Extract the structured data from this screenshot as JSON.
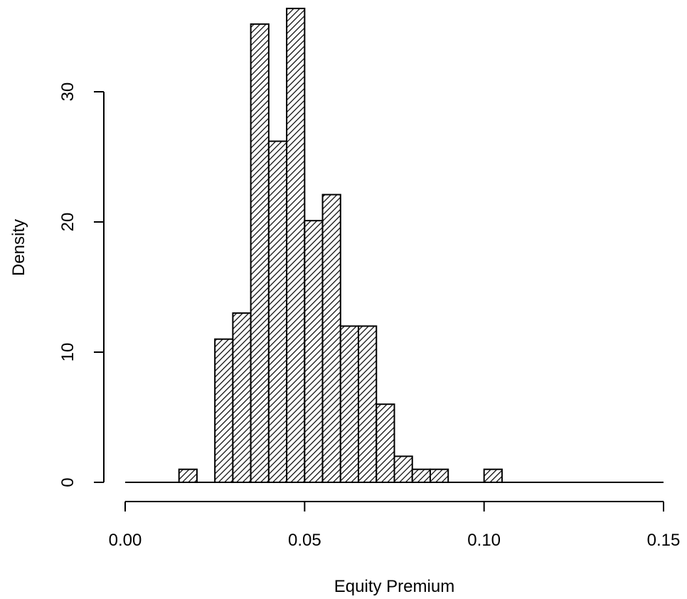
{
  "chart_data": {
    "type": "bar",
    "subtype": "histogram",
    "title": "",
    "xlabel": "Equity Premium",
    "ylabel": "Density",
    "xlim": [
      0.0,
      0.15
    ],
    "ylim": [
      0,
      36
    ],
    "bin_width": 0.005,
    "bins": [
      {
        "start": 0.015,
        "end": 0.02,
        "value": 1
      },
      {
        "start": 0.025,
        "end": 0.03,
        "value": 11
      },
      {
        "start": 0.03,
        "end": 0.035,
        "value": 13
      },
      {
        "start": 0.035,
        "end": 0.04,
        "value": 35.2
      },
      {
        "start": 0.04,
        "end": 0.045,
        "value": 26.2
      },
      {
        "start": 0.045,
        "end": 0.05,
        "value": 36.4
      },
      {
        "start": 0.05,
        "end": 0.055,
        "value": 20.1
      },
      {
        "start": 0.055,
        "end": 0.06,
        "value": 22.1
      },
      {
        "start": 0.06,
        "end": 0.065,
        "value": 12
      },
      {
        "start": 0.065,
        "end": 0.07,
        "value": 12
      },
      {
        "start": 0.07,
        "end": 0.075,
        "value": 6
      },
      {
        "start": 0.075,
        "end": 0.08,
        "value": 2
      },
      {
        "start": 0.08,
        "end": 0.085,
        "value": 1
      },
      {
        "start": 0.085,
        "end": 0.09,
        "value": 1
      },
      {
        "start": 0.1,
        "end": 0.105,
        "value": 1
      }
    ],
    "baseline": {
      "from": 0.0,
      "to": 0.15
    },
    "x_ticks": [
      {
        "value": 0.0,
        "label": "0.00"
      },
      {
        "value": 0.05,
        "label": "0.05"
      },
      {
        "value": 0.1,
        "label": "0.10"
      },
      {
        "value": 0.15,
        "label": "0.15"
      }
    ],
    "y_ticks": [
      {
        "value": 0,
        "label": "0"
      },
      {
        "value": 10,
        "label": "10"
      },
      {
        "value": 20,
        "label": "20"
      },
      {
        "value": 30,
        "label": "30"
      }
    ],
    "fill_pattern": "diagonal-hatch",
    "colors": {
      "bar_stroke": "#000000",
      "hatch": "#000000",
      "background": "#ffffff"
    },
    "grid": false,
    "legend": "none"
  }
}
